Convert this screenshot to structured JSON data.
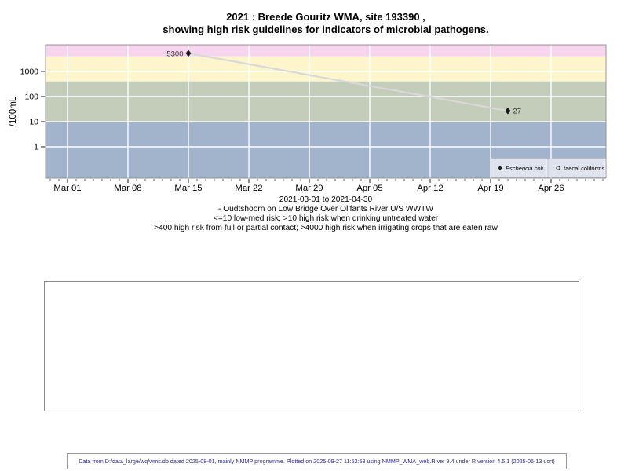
{
  "title": {
    "line1": "2021 : Breede Gouritz WMA, site 193390 ,",
    "line2": "showing high risk guidelines for indicators of microbial pathogens."
  },
  "subtitle": {
    "line1": "2021-03-01 to 2021-04-30",
    "line2": "- Oudtshoorn on Low Bridge Over Olifants River U/S WWTW",
    "line3": "<=10 low-med risk; >10 high risk when drinking untreated water",
    "line4": ">400 high risk from full or partial contact; >4000 high risk when irrigating crops that are eaten raw"
  },
  "footer": {
    "text": "Data from D:/data_large/wq/wms.db dated 2025-08-01, mainly NMMP programme. Plotted on 2025-09-27 11:52:58 using NMMP_WMA_web.R ver 9.4 under R version 4.5.1 (2025-06-13 ucrt)",
    "color": "#2b2b8f"
  },
  "chart_data": {
    "type": "line",
    "y_axis": {
      "label": "/100mL",
      "scale": "log10",
      "ticks": [
        1,
        10,
        100,
        1000
      ],
      "range_log10": [
        -1.3,
        4.1
      ]
    },
    "x_axis": {
      "start_date": "2021-03-01",
      "tick_labels": [
        "Mar 01",
        "Mar 08",
        "Mar 15",
        "Mar 22",
        "Mar 29",
        "Apr 05",
        "Apr 12",
        "Apr 19",
        "Apr 26"
      ],
      "major_tick_days": [
        0,
        7,
        14,
        21,
        28,
        35,
        42,
        49,
        56
      ],
      "minor_tick_every_days": 1,
      "range_days": [
        -2.5,
        62.4
      ]
    },
    "bands": [
      {
        "label": ">4000 high risk when irrigating crops that are eaten raw",
        "from": 4000,
        "to": null,
        "color": "#f7d5ef"
      },
      {
        "label": ">400 high risk from full or partial contact",
        "from": 400,
        "to": 4000,
        "color": "#fdf6cd"
      },
      {
        "label": ">10 high risk when drinking untreated water",
        "from": 10,
        "to": 400,
        "color": "#c4cdb9"
      },
      {
        "label": "<=10 low-med risk",
        "from": null,
        "to": 10,
        "color": "#a2b3cc"
      }
    ],
    "gridlines": {
      "color": "#ffffff",
      "horizontal_at": [
        1,
        10,
        100,
        1000
      ]
    },
    "series": [
      {
        "name": "Eschericia coli",
        "marker": "filled-diamond",
        "marker_color": "#1a1a1a",
        "line_color": "#d8d8d8",
        "points": [
          {
            "date": "2021-03-15",
            "value": 5300,
            "label": "5300",
            "label_side": "left"
          },
          {
            "date": "2021-04-21",
            "value": 27,
            "label": "27",
            "label_side": "right"
          }
        ]
      },
      {
        "name": "faecal coliforms",
        "marker": "open-circle",
        "marker_color": "#444444",
        "line_color": "#d8d8d8",
        "points": []
      }
    ],
    "legend": {
      "position": "bottom-right",
      "entries": [
        {
          "label": "Eschericia coli",
          "italic": true,
          "marker": "filled-diamond"
        },
        {
          "label": "faecal coliforms",
          "italic": false,
          "marker": "open-circle"
        }
      ]
    }
  }
}
